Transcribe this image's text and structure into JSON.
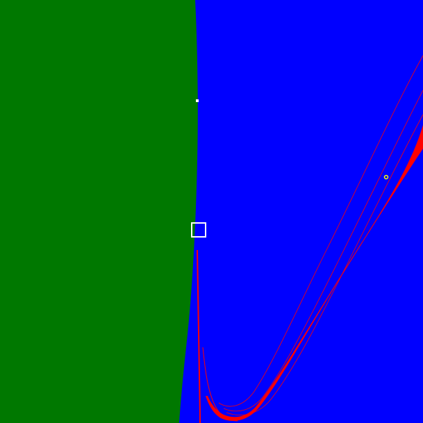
{
  "colors": {
    "background": "#0000ff",
    "green_region": "#007800",
    "red_band": "#ff0000",
    "marker_white": "#ffffff",
    "marker_yellow": "#ffff00"
  },
  "regions": [
    {
      "name": "green-region",
      "color_key": "green_region"
    },
    {
      "name": "blue-region",
      "color_key": "background"
    },
    {
      "name": "red-band",
      "color_key": "red_band"
    }
  ],
  "markers": [
    {
      "name": "selection-box",
      "kind": "square-outline",
      "color_key": "marker_white"
    },
    {
      "name": "white-dot",
      "kind": "dot",
      "color_key": "marker_white"
    },
    {
      "name": "yellow-ring",
      "kind": "ring",
      "color_key": "marker_yellow"
    }
  ]
}
